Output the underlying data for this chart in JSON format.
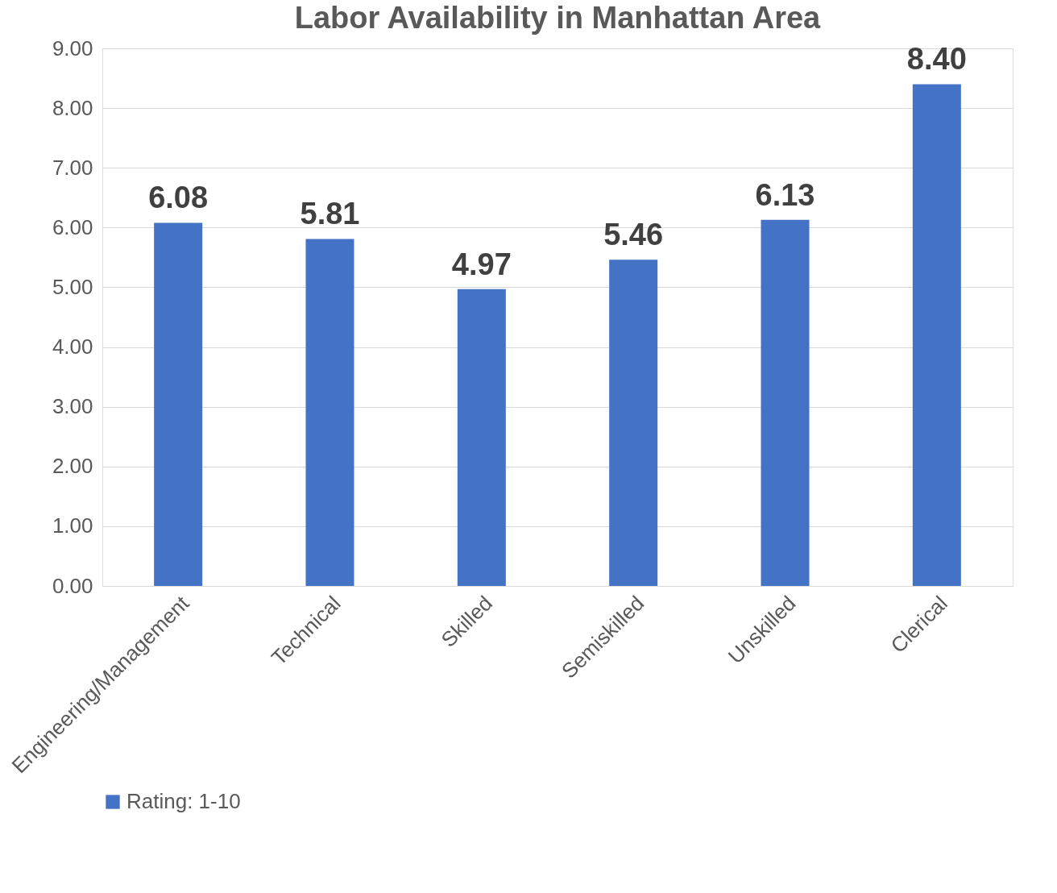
{
  "chart_data": {
    "type": "bar",
    "title": "Labor Availability in Manhattan Area",
    "categories": [
      "Engineering/Management",
      "Technical",
      "Skilled",
      "Semiskilled",
      "Unskilled",
      "Clerical"
    ],
    "series": [
      {
        "name": "Rating: 1-10",
        "color": "#4472c4",
        "values": [
          6.08,
          5.81,
          4.97,
          5.46,
          6.13,
          8.4
        ],
        "value_labels": [
          "6.08",
          "5.81",
          "4.97",
          "5.46",
          "6.13",
          "8.40"
        ]
      }
    ],
    "ylim": [
      0,
      9
    ],
    "yticks": [
      {
        "value": 0,
        "label": "0.00"
      },
      {
        "value": 1,
        "label": "1.00"
      },
      {
        "value": 2,
        "label": "2.00"
      },
      {
        "value": 3,
        "label": "3.00"
      },
      {
        "value": 4,
        "label": "4.00"
      },
      {
        "value": 5,
        "label": "5.00"
      },
      {
        "value": 6,
        "label": "6.00"
      },
      {
        "value": 7,
        "label": "7.00"
      },
      {
        "value": 8,
        "label": "8.00"
      },
      {
        "value": 9,
        "label": "9.00"
      }
    ],
    "grid": "y",
    "legend": "bottom"
  }
}
